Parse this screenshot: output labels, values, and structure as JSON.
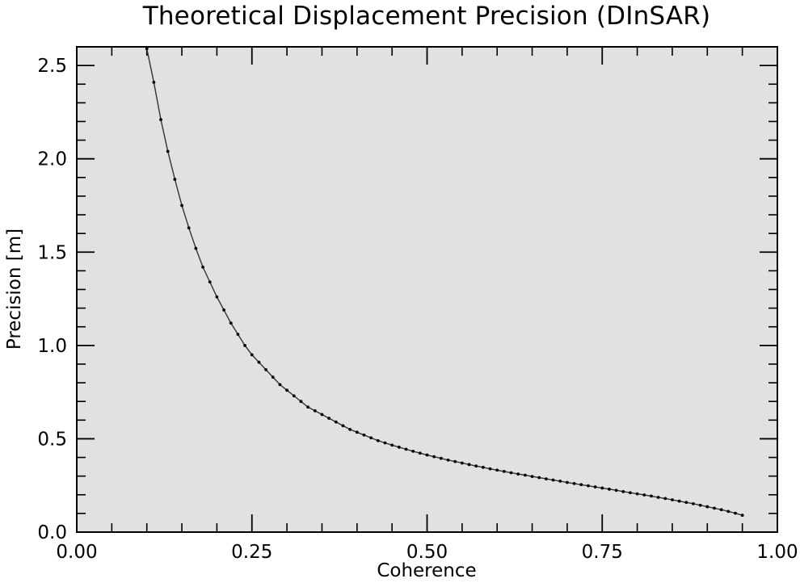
{
  "chart_data": {
    "type": "line",
    "title": "Theoretical Displacement Precision (DInSAR)",
    "xlabel": "Coherence",
    "ylabel": "Precision [m]",
    "xlim": [
      0.0,
      1.0
    ],
    "ylim": [
      0.0,
      2.6
    ],
    "grid": false,
    "x_ticks": [
      0.0,
      0.25,
      0.5,
      0.75,
      1.0
    ],
    "x_tick_labels": [
      "0.00",
      "0.25",
      "0.50",
      "0.75",
      "1.00"
    ],
    "x_minor_step": 0.05,
    "y_ticks": [
      0.0,
      0.5,
      1.0,
      1.5,
      2.0,
      2.5
    ],
    "y_tick_labels": [
      "0.0",
      "0.5",
      "1.0",
      "1.5",
      "2.0",
      "2.5"
    ],
    "y_minor_step": 0.1,
    "background_color": "#e1e1e1",
    "line_color": "#333333",
    "marker_color": "#000000",
    "series": [
      {
        "name": "Precision",
        "x": [
          0.1,
          0.11,
          0.12,
          0.13,
          0.14,
          0.15,
          0.16,
          0.17,
          0.18,
          0.19,
          0.2,
          0.21,
          0.22,
          0.23,
          0.24,
          0.25,
          0.26,
          0.27,
          0.28,
          0.29,
          0.3,
          0.31,
          0.32,
          0.33,
          0.34,
          0.35,
          0.36,
          0.37,
          0.38,
          0.39,
          0.4,
          0.41,
          0.42,
          0.43,
          0.44,
          0.45,
          0.46,
          0.47,
          0.48,
          0.49,
          0.5,
          0.51,
          0.52,
          0.53,
          0.54,
          0.55,
          0.56,
          0.57,
          0.58,
          0.59,
          0.6,
          0.61,
          0.62,
          0.63,
          0.64,
          0.65,
          0.66,
          0.67,
          0.68,
          0.69,
          0.7,
          0.71,
          0.72,
          0.73,
          0.74,
          0.75,
          0.76,
          0.77,
          0.78,
          0.79,
          0.8,
          0.81,
          0.82,
          0.83,
          0.84,
          0.85,
          0.86,
          0.87,
          0.88,
          0.89,
          0.9,
          0.91,
          0.92,
          0.93,
          0.94,
          0.95
        ],
        "values": [
          2.59,
          2.41,
          2.21,
          2.04,
          1.89,
          1.75,
          1.63,
          1.52,
          1.42,
          1.34,
          1.26,
          1.19,
          1.12,
          1.06,
          1.0,
          0.95,
          0.91,
          0.87,
          0.83,
          0.79,
          0.76,
          0.73,
          0.7,
          0.67,
          0.65,
          0.63,
          0.61,
          0.59,
          0.57,
          0.55,
          0.535,
          0.52,
          0.505,
          0.49,
          0.478,
          0.466,
          0.455,
          0.444,
          0.433,
          0.423,
          0.413,
          0.404,
          0.395,
          0.386,
          0.378,
          0.37,
          0.362,
          0.354,
          0.347,
          0.339,
          0.332,
          0.325,
          0.318,
          0.311,
          0.305,
          0.298,
          0.292,
          0.285,
          0.279,
          0.273,
          0.266,
          0.26,
          0.254,
          0.248,
          0.242,
          0.236,
          0.23,
          0.224,
          0.217,
          0.211,
          0.205,
          0.199,
          0.193,
          0.186,
          0.18,
          0.173,
          0.166,
          0.159,
          0.152,
          0.144,
          0.136,
          0.128,
          0.12,
          0.111,
          0.101,
          0.09
        ]
      }
    ]
  }
}
